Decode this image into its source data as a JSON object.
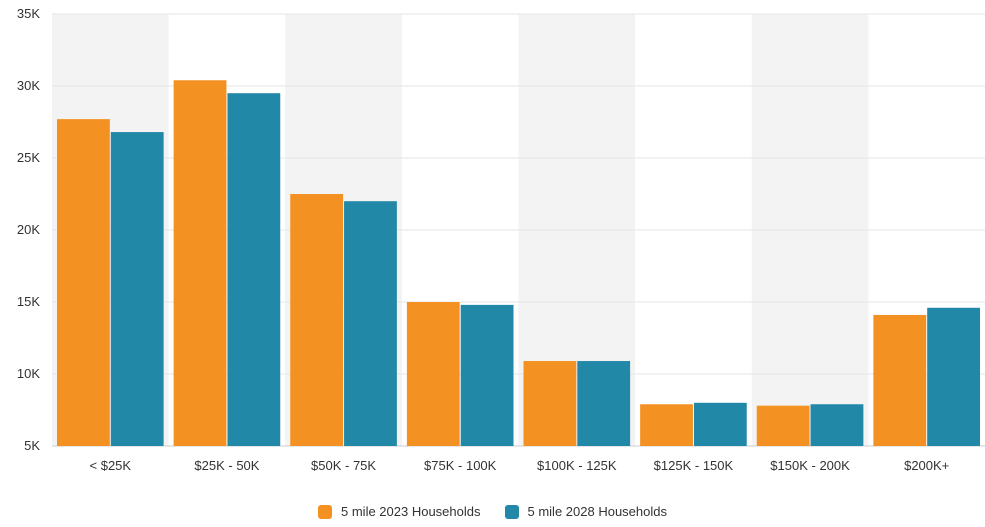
{
  "chart_data": {
    "type": "bar",
    "categories": [
      "< $25K",
      "$25K - 50K",
      "$50K - 75K",
      "$75K - 100K",
      "$100K - 125K",
      "$125K - 150K",
      "$150K - 200K",
      "$200K+"
    ],
    "series": [
      {
        "name": "5 mile 2023 Households",
        "color": "#f39223",
        "values": [
          27700,
          30400,
          22500,
          15000,
          10900,
          7900,
          7800,
          14100
        ]
      },
      {
        "name": "5 mile 2028 Households",
        "color": "#2288a7",
        "values": [
          26800,
          29500,
          22000,
          14800,
          10900,
          8000,
          7900,
          14600
        ]
      }
    ],
    "y_ticks": [
      "5K",
      "10K",
      "15K",
      "20K",
      "25K",
      "30K",
      "35K"
    ],
    "ylim": [
      5000,
      35000
    ],
    "grid": true,
    "alternating_band_color": "#f3f3f3",
    "legend_position": "bottom-center",
    "title": "",
    "xlabel": "",
    "ylabel": ""
  }
}
